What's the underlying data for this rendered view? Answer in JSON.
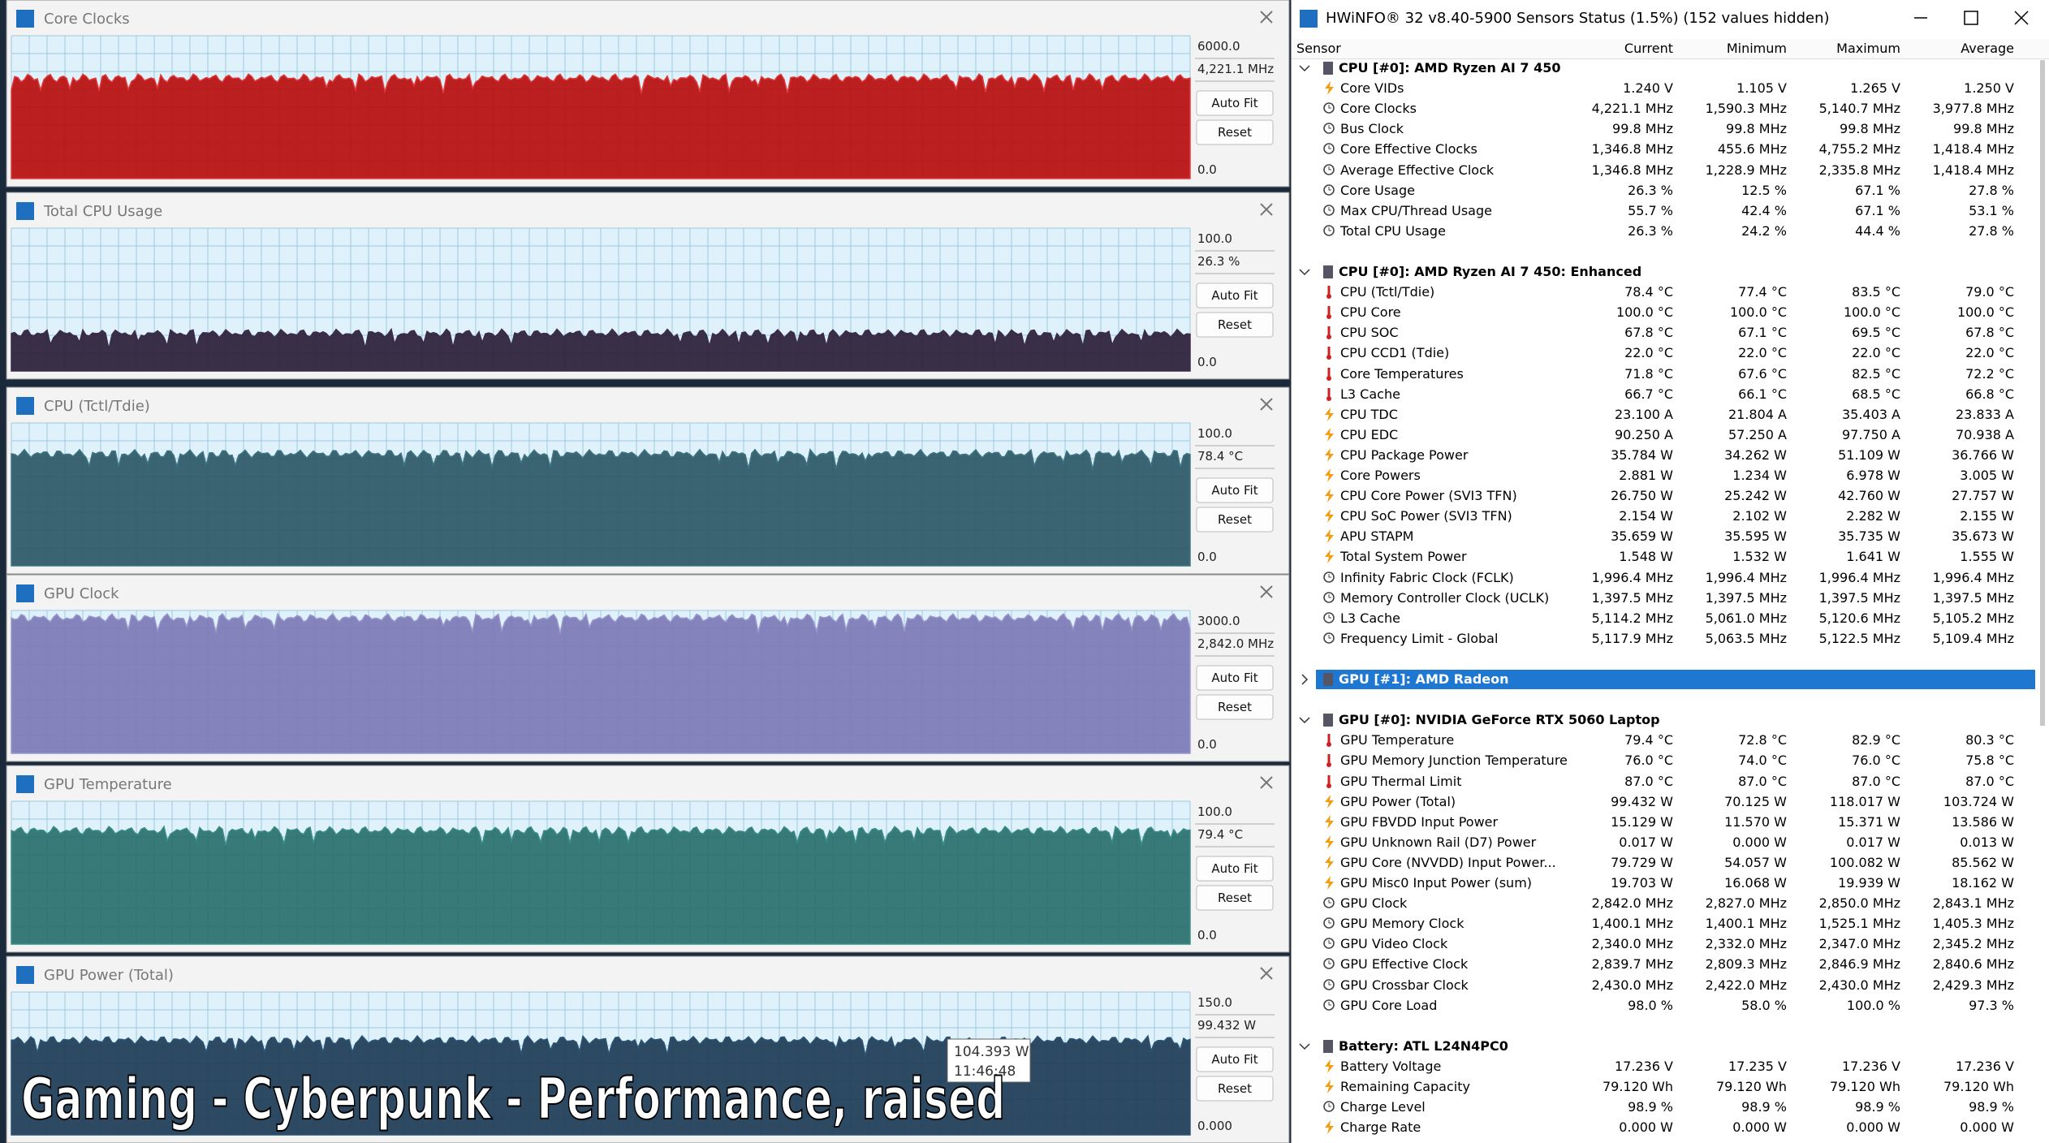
{
  "graphs": [
    {
      "title": "Core Clocks",
      "max": "6000.0",
      "current": "4,221.1 MHz",
      "min": "0.0",
      "buttons": [
        "Auto Fit",
        "Reset"
      ]
    },
    {
      "title": "Total CPU Usage",
      "max": "100.0",
      "current": "26.3 %",
      "min": "0.0",
      "buttons": [
        "Auto Fit",
        "Reset"
      ]
    },
    {
      "title": "CPU (Tctl/Tdie)",
      "max": "100.0",
      "current": "78.4 °C",
      "min": "0.0",
      "buttons": [
        "Auto Fit",
        "Reset"
      ]
    },
    {
      "title": "GPU Clock",
      "max": "3000.0",
      "current": "2,842.0 MHz",
      "min": "0.0",
      "buttons": [
        "Auto Fit",
        "Reset"
      ]
    },
    {
      "title": "GPU Temperature",
      "max": "100.0",
      "current": "79.4 °C",
      "min": "0.0",
      "buttons": [
        "Auto Fit",
        "Reset"
      ]
    },
    {
      "title": "GPU Power (Total)",
      "max": "150.0",
      "current": "99.432 W",
      "min": "0.000",
      "buttons": [
        "Auto Fit",
        "Reset"
      ]
    }
  ],
  "tooltip": {
    "value": "104.393 W",
    "time": "11:46:48"
  },
  "overlay": "Gaming - Cyberpunk - Performance, raised",
  "window": {
    "title": "HWiNFO® 32 v8.40-5900 Sensors Status (1.5%) (152 values hidden)",
    "columns": [
      "Sensor",
      "Current",
      "Minimum",
      "Maximum",
      "Average"
    ],
    "groups": [
      {
        "name": "CPU [#0]: AMD Ryzen AI 7 450",
        "rows": [
          [
            "Core VIDs",
            "1.240 V",
            "1.105 V",
            "1.265 V",
            "1.250 V"
          ],
          [
            "Core Clocks",
            "4,221.1 MHz",
            "1,590.3 MHz",
            "5,140.7 MHz",
            "3,977.8 MHz"
          ],
          [
            "Bus Clock",
            "99.8 MHz",
            "99.8 MHz",
            "99.8 MHz",
            "99.8 MHz"
          ],
          [
            "Core Effective Clocks",
            "1,346.8 MHz",
            "455.6 MHz",
            "4,755.2 MHz",
            "1,418.4 MHz"
          ],
          [
            "Average Effective Clock",
            "1,346.8 MHz",
            "1,228.9 MHz",
            "2,335.8 MHz",
            "1,418.4 MHz"
          ],
          [
            "Core Usage",
            "26.3 %",
            "12.5 %",
            "67.1 %",
            "27.8 %"
          ],
          [
            "Max CPU/Thread Usage",
            "55.7 %",
            "42.4 %",
            "67.1 %",
            "53.1 %"
          ],
          [
            "Total CPU Usage",
            "26.3 %",
            "24.2 %",
            "44.4 %",
            "27.8 %"
          ]
        ]
      },
      {
        "name": "CPU [#0]: AMD Ryzen AI 7 450: Enhanced",
        "rows": [
          [
            "CPU (Tctl/Tdie)",
            "78.4 °C",
            "77.4 °C",
            "83.5 °C",
            "79.0 °C"
          ],
          [
            "CPU Core",
            "100.0 °C",
            "100.0 °C",
            "100.0 °C",
            "100.0 °C"
          ],
          [
            "CPU SOC",
            "67.8 °C",
            "67.1 °C",
            "69.5 °C",
            "67.8 °C"
          ],
          [
            "CPU CCD1 (Tdie)",
            "22.0 °C",
            "22.0 °C",
            "22.0 °C",
            "22.0 °C"
          ],
          [
            "Core Temperatures",
            "71.8 °C",
            "67.6 °C",
            "82.5 °C",
            "72.2 °C"
          ],
          [
            "L3 Cache",
            "66.7 °C",
            "66.1 °C",
            "68.5 °C",
            "66.8 °C"
          ],
          [
            "CPU TDC",
            "23.100 A",
            "21.804 A",
            "35.403 A",
            "23.833 A"
          ],
          [
            "CPU EDC",
            "90.250 A",
            "57.250 A",
            "97.750 A",
            "70.938 A"
          ],
          [
            "CPU Package Power",
            "35.784 W",
            "34.262 W",
            "51.109 W",
            "36.766 W"
          ],
          [
            "Core Powers",
            "2.881 W",
            "1.234 W",
            "6.978 W",
            "3.005 W"
          ],
          [
            "CPU Core Power (SVI3 TFN)",
            "26.750 W",
            "25.242 W",
            "42.760 W",
            "27.757 W"
          ],
          [
            "CPU SoC Power (SVI3 TFN)",
            "2.154 W",
            "2.102 W",
            "2.282 W",
            "2.155 W"
          ],
          [
            "APU STAPM",
            "35.659 W",
            "35.595 W",
            "35.735 W",
            "35.673 W"
          ],
          [
            "Total System Power",
            "1.548 W",
            "1.532 W",
            "1.641 W",
            "1.555 W"
          ],
          [
            "Infinity Fabric Clock (FCLK)",
            "1,996.4 MHz",
            "1,996.4 MHz",
            "1,996.4 MHz",
            "1,996.4 MHz"
          ],
          [
            "Memory Controller Clock (UCLK)",
            "1,397.5 MHz",
            "1,397.5 MHz",
            "1,397.5 MHz",
            "1,397.5 MHz"
          ],
          [
            "L3 Cache",
            "5,114.2 MHz",
            "5,061.0 MHz",
            "5,120.6 MHz",
            "5,105.2 MHz"
          ],
          [
            "Frequency Limit - Global",
            "5,117.9 MHz",
            "5,063.5 MHz",
            "5,122.5 MHz",
            "5,109.4 MHz"
          ]
        ]
      },
      {
        "name": "GPU [#1]: AMD Radeon",
        "rows": []
      },
      {
        "name": "GPU [#0]: NVIDIA GeForce RTX 5060 Laptop",
        "rows": [
          [
            "GPU Temperature",
            "79.4 °C",
            "72.8 °C",
            "82.9 °C",
            "80.3 °C"
          ],
          [
            "GPU Memory Junction Temperature",
            "76.0 °C",
            "74.0 °C",
            "76.0 °C",
            "75.8 °C"
          ],
          [
            "GPU Thermal Limit",
            "87.0 °C",
            "87.0 °C",
            "87.0 °C",
            "87.0 °C"
          ],
          [
            "GPU Power (Total)",
            "99.432 W",
            "70.125 W",
            "118.017 W",
            "103.724 W"
          ],
          [
            "GPU FBVDD Input Power",
            "15.129 W",
            "11.570 W",
            "15.371 W",
            "13.586 W"
          ],
          [
            "GPU Unknown Rail (D7) Power",
            "0.017 W",
            "0.000 W",
            "0.017 W",
            "0.013 W"
          ],
          [
            "GPU Core (NVVDD) Input Power...",
            "79.729 W",
            "54.057 W",
            "100.082 W",
            "85.562 W"
          ],
          [
            "GPU Misc0 Input Power (sum)",
            "19.703 W",
            "16.068 W",
            "19.939 W",
            "18.162 W"
          ],
          [
            "GPU Clock",
            "2,842.0 MHz",
            "2,827.0 MHz",
            "2,850.0 MHz",
            "2,843.1 MHz"
          ],
          [
            "GPU Memory Clock",
            "1,400.1 MHz",
            "1,400.1 MHz",
            "1,525.1 MHz",
            "1,405.3 MHz"
          ],
          [
            "GPU Video Clock",
            "2,340.0 MHz",
            "2,332.0 MHz",
            "2,347.0 MHz",
            "2,345.2 MHz"
          ],
          [
            "GPU Effective Clock",
            "2,839.7 MHz",
            "2,809.3 MHz",
            "2,846.9 MHz",
            "2,840.6 MHz"
          ],
          [
            "GPU Crossbar Clock",
            "2,430.0 MHz",
            "2,422.0 MHz",
            "2,430.0 MHz",
            "2,429.3 MHz"
          ],
          [
            "GPU Core Load",
            "98.0 %",
            "58.0 %",
            "100.0 %",
            "97.3 %"
          ]
        ]
      },
      {
        "name": "Battery: ATL L24N4PC0",
        "rows": [
          [
            "Battery Voltage",
            "17.236 V",
            "17.235 V",
            "17.236 V",
            "17.236 V"
          ],
          [
            "Remaining Capacity",
            "79.120 Wh",
            "79.120 Wh",
            "79.120 Wh",
            "79.120 Wh"
          ],
          [
            "Charge Level",
            "98.9 %",
            "98.9 %",
            "98.9 %",
            "98.9 %"
          ],
          [
            "Charge Rate",
            "0.000 W",
            "0.000 W",
            "0.000 W",
            "0.000 W"
          ]
        ]
      }
    ]
  }
}
